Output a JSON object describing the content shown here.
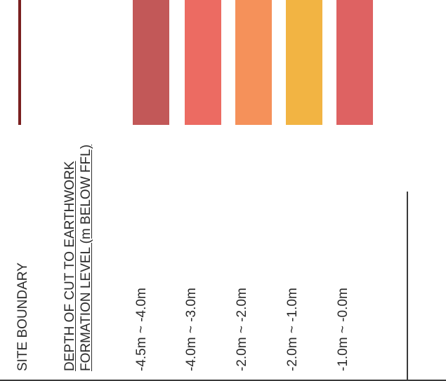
{
  "legend": {
    "site_boundary_label": "SITE BOUNDARY",
    "site_boundary_color": "#7a2020",
    "heading_line1": "DEPTH OF CUT TO EARTHWORK",
    "heading_line2": "FORMATION LEVEL (m BELOW FFL)",
    "items": [
      {
        "label": "-4.5m ~ -4.0m",
        "color": "#c25858"
      },
      {
        "label": "-4.0m ~ -3.0m",
        "color": "#ec6b62"
      },
      {
        "label": "-2.0m ~ -2.0m",
        "color": "#f5915a"
      },
      {
        "label": "-2.0m ~ -1.0m",
        "color": "#f2b443"
      },
      {
        "label": "-1.0m ~ -0.0m",
        "color": "#de6262"
      }
    ]
  }
}
